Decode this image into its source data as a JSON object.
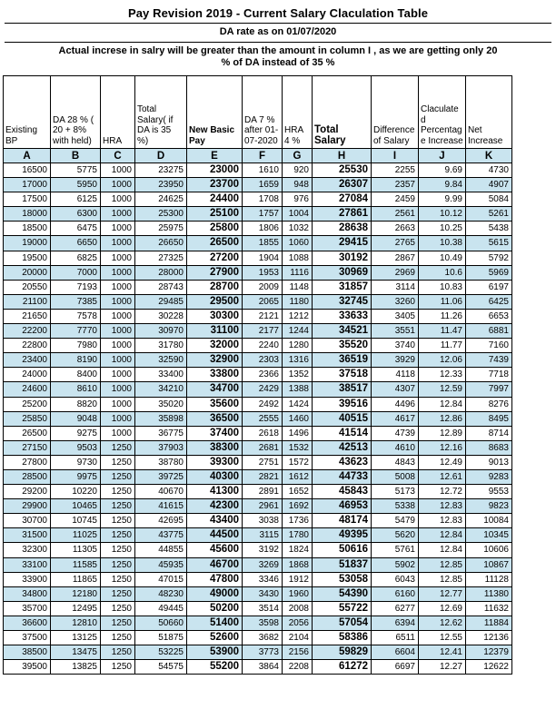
{
  "title": "Pay Revision 2019 - Current Salary Claculation Table",
  "subtitle": "DA rate as on 01/07/2020",
  "note_lines": [
    "Actual increse in salry will be greater than the amount in column I , as we are getting only 20",
    "% of DA instead of 35 %"
  ],
  "colors": {
    "row_alt": "#c9e4ef",
    "border": "#000000",
    "text": "#000000"
  },
  "table": {
    "columns": [
      {
        "letter": "A",
        "label": "Existing BP"
      },
      {
        "letter": "B",
        "label": "DA 28 % ( 20 + 8% with held)"
      },
      {
        "letter": "C",
        "label": "HRA"
      },
      {
        "letter": "D",
        "label": "Total Salary( if DA is 35 %)"
      },
      {
        "letter": "E",
        "label": "New Basic Pay"
      },
      {
        "letter": "F",
        "label": "DA 7 % after 01-07-2020"
      },
      {
        "letter": "G",
        "label": "HRA 4 %"
      },
      {
        "letter": "H",
        "label": "Total Salary"
      },
      {
        "letter": "I",
        "label": "Difference of Salary"
      },
      {
        "letter": "J",
        "label": "Claculated Percentage Increase"
      },
      {
        "letter": "K",
        "label": "Net Increase"
      }
    ],
    "rows": [
      [
        "16500",
        "5775",
        "1000",
        "23275",
        "23000",
        "1610",
        "920",
        "25530",
        "2255",
        "9.69",
        "4730"
      ],
      [
        "17000",
        "5950",
        "1000",
        "23950",
        "23700",
        "1659",
        "948",
        "26307",
        "2357",
        "9.84",
        "4907"
      ],
      [
        "17500",
        "6125",
        "1000",
        "24625",
        "24400",
        "1708",
        "976",
        "27084",
        "2459",
        "9.99",
        "5084"
      ],
      [
        "18000",
        "6300",
        "1000",
        "25300",
        "25100",
        "1757",
        "1004",
        "27861",
        "2561",
        "10.12",
        "5261"
      ],
      [
        "18500",
        "6475",
        "1000",
        "25975",
        "25800",
        "1806",
        "1032",
        "28638",
        "2663",
        "10.25",
        "5438"
      ],
      [
        "19000",
        "6650",
        "1000",
        "26650",
        "26500",
        "1855",
        "1060",
        "29415",
        "2765",
        "10.38",
        "5615"
      ],
      [
        "19500",
        "6825",
        "1000",
        "27325",
        "27200",
        "1904",
        "1088",
        "30192",
        "2867",
        "10.49",
        "5792"
      ],
      [
        "20000",
        "7000",
        "1000",
        "28000",
        "27900",
        "1953",
        "1116",
        "30969",
        "2969",
        "10.6",
        "5969"
      ],
      [
        "20550",
        "7193",
        "1000",
        "28743",
        "28700",
        "2009",
        "1148",
        "31857",
        "3114",
        "10.83",
        "6197"
      ],
      [
        "21100",
        "7385",
        "1000",
        "29485",
        "29500",
        "2065",
        "1180",
        "32745",
        "3260",
        "11.06",
        "6425"
      ],
      [
        "21650",
        "7578",
        "1000",
        "30228",
        "30300",
        "2121",
        "1212",
        "33633",
        "3405",
        "11.26",
        "6653"
      ],
      [
        "22200",
        "7770",
        "1000",
        "30970",
        "31100",
        "2177",
        "1244",
        "34521",
        "3551",
        "11.47",
        "6881"
      ],
      [
        "22800",
        "7980",
        "1000",
        "31780",
        "32000",
        "2240",
        "1280",
        "35520",
        "3740",
        "11.77",
        "7160"
      ],
      [
        "23400",
        "8190",
        "1000",
        "32590",
        "32900",
        "2303",
        "1316",
        "36519",
        "3929",
        "12.06",
        "7439"
      ],
      [
        "24000",
        "8400",
        "1000",
        "33400",
        "33800",
        "2366",
        "1352",
        "37518",
        "4118",
        "12.33",
        "7718"
      ],
      [
        "24600",
        "8610",
        "1000",
        "34210",
        "34700",
        "2429",
        "1388",
        "38517",
        "4307",
        "12.59",
        "7997"
      ],
      [
        "25200",
        "8820",
        "1000",
        "35020",
        "35600",
        "2492",
        "1424",
        "39516",
        "4496",
        "12.84",
        "8276"
      ],
      [
        "25850",
        "9048",
        "1000",
        "35898",
        "36500",
        "2555",
        "1460",
        "40515",
        "4617",
        "12.86",
        "8495"
      ],
      [
        "26500",
        "9275",
        "1000",
        "36775",
        "37400",
        "2618",
        "1496",
        "41514",
        "4739",
        "12.89",
        "8714"
      ],
      [
        "27150",
        "9503",
        "1250",
        "37903",
        "38300",
        "2681",
        "1532",
        "42513",
        "4610",
        "12.16",
        "8683"
      ],
      [
        "27800",
        "9730",
        "1250",
        "38780",
        "39300",
        "2751",
        "1572",
        "43623",
        "4843",
        "12.49",
        "9013"
      ],
      [
        "28500",
        "9975",
        "1250",
        "39725",
        "40300",
        "2821",
        "1612",
        "44733",
        "5008",
        "12.61",
        "9283"
      ],
      [
        "29200",
        "10220",
        "1250",
        "40670",
        "41300",
        "2891",
        "1652",
        "45843",
        "5173",
        "12.72",
        "9553"
      ],
      [
        "29900",
        "10465",
        "1250",
        "41615",
        "42300",
        "2961",
        "1692",
        "46953",
        "5338",
        "12.83",
        "9823"
      ],
      [
        "30700",
        "10745",
        "1250",
        "42695",
        "43400",
        "3038",
        "1736",
        "48174",
        "5479",
        "12.83",
        "10084"
      ],
      [
        "31500",
        "11025",
        "1250",
        "43775",
        "44500",
        "3115",
        "1780",
        "49395",
        "5620",
        "12.84",
        "10345"
      ],
      [
        "32300",
        "11305",
        "1250",
        "44855",
        "45600",
        "3192",
        "1824",
        "50616",
        "5761",
        "12.84",
        "10606"
      ],
      [
        "33100",
        "11585",
        "1250",
        "45935",
        "46700",
        "3269",
        "1868",
        "51837",
        "5902",
        "12.85",
        "10867"
      ],
      [
        "33900",
        "11865",
        "1250",
        "47015",
        "47800",
        "3346",
        "1912",
        "53058",
        "6043",
        "12.85",
        "11128"
      ],
      [
        "34800",
        "12180",
        "1250",
        "48230",
        "49000",
        "3430",
        "1960",
        "54390",
        "6160",
        "12.77",
        "11380"
      ],
      [
        "35700",
        "12495",
        "1250",
        "49445",
        "50200",
        "3514",
        "2008",
        "55722",
        "6277",
        "12.69",
        "11632"
      ],
      [
        "36600",
        "12810",
        "1250",
        "50660",
        "51400",
        "3598",
        "2056",
        "57054",
        "6394",
        "12.62",
        "11884"
      ],
      [
        "37500",
        "13125",
        "1250",
        "51875",
        "52600",
        "3682",
        "2104",
        "58386",
        "6511",
        "12.55",
        "12136"
      ],
      [
        "38500",
        "13475",
        "1250",
        "53225",
        "53900",
        "3773",
        "2156",
        "59829",
        "6604",
        "12.41",
        "12379"
      ],
      [
        "39500",
        "13825",
        "1250",
        "54575",
        "55200",
        "3864",
        "2208",
        "61272",
        "6697",
        "12.27",
        "12622"
      ]
    ]
  }
}
